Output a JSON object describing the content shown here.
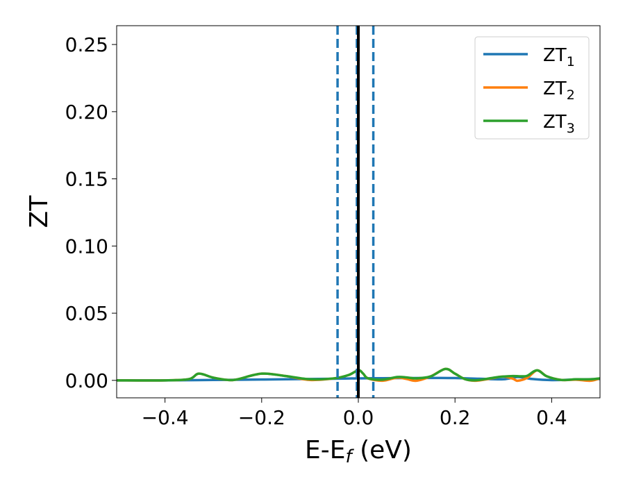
{
  "chart_data": {
    "type": "line",
    "title": "",
    "xlabel": "E-E",
    "xlabel_sub": "f",
    "xlabel_unit": " (eV)",
    "ylabel": "ZT",
    "xlim": [
      -0.5,
      0.5
    ],
    "ylim": [
      -0.013,
      0.264
    ],
    "xticks": [
      -0.4,
      -0.2,
      0.0,
      0.2,
      0.4
    ],
    "xtick_labels": [
      "−0.4",
      "−0.2",
      "0.0",
      "0.2",
      "0.4"
    ],
    "yticks": [
      0.0,
      0.05,
      0.1,
      0.15,
      0.2,
      0.25
    ],
    "ytick_labels": [
      "0.00",
      "0.05",
      "0.10",
      "0.15",
      "0.20",
      "0.25"
    ],
    "grid": false,
    "legend_position": "top-right",
    "vertical_lines": [
      {
        "x": -0.043,
        "style": "dashed",
        "color": "#1f77b4"
      },
      {
        "x": -0.003,
        "style": "dashed",
        "color": "#1f77b4"
      },
      {
        "x": 0.031,
        "style": "dashed",
        "color": "#1f77b4"
      },
      {
        "x": 0.0,
        "style": "solid",
        "color": "#000000"
      }
    ],
    "series": [
      {
        "name": "ZT",
        "name_sub": "1",
        "color": "#1f77b4",
        "x": [
          -0.5,
          -0.4,
          -0.3,
          -0.2,
          -0.1,
          -0.05,
          0.0,
          0.05,
          0.1,
          0.15,
          0.2,
          0.25,
          0.3,
          0.33,
          0.36,
          0.4,
          0.45,
          0.5
        ],
        "y": [
          0.0,
          0.0,
          0.0003,
          0.0006,
          0.001,
          0.0012,
          0.0015,
          0.0016,
          0.0017,
          0.0018,
          0.0017,
          0.0012,
          0.0008,
          0.0025,
          0.001,
          0.0002,
          0.0006,
          0.001
        ]
      },
      {
        "name": "ZT",
        "name_sub": "2",
        "color": "#ff7f0e",
        "x": [
          -0.5,
          -0.4,
          -0.35,
          -0.33,
          -0.3,
          -0.27,
          -0.25,
          -0.2,
          -0.15,
          -0.1,
          -0.05,
          -0.02,
          0.0,
          0.01,
          0.02,
          0.05,
          0.08,
          0.1,
          0.12,
          0.15,
          0.18,
          0.2,
          0.22,
          0.24,
          0.26,
          0.28,
          0.3,
          0.32,
          0.33,
          0.35,
          0.37,
          0.39,
          0.42,
          0.45,
          0.48,
          0.5
        ],
        "y": [
          0.0,
          0.0,
          0.001,
          0.005,
          0.002,
          0.0003,
          0.0008,
          0.005,
          0.0032,
          0.0003,
          0.0015,
          0.004,
          0.0075,
          0.005,
          0.0015,
          -0.0003,
          0.002,
          0.001,
          -0.0003,
          0.003,
          0.0085,
          0.005,
          0.001,
          -0.0003,
          0.0005,
          0.0018,
          0.0028,
          0.0012,
          -0.0003,
          0.002,
          0.0075,
          0.003,
          0.0003,
          0.0005,
          -0.0003,
          0.0015
        ]
      },
      {
        "name": "ZT",
        "name_sub": "3",
        "color": "#2ca02c",
        "x": [
          -0.5,
          -0.4,
          -0.35,
          -0.33,
          -0.3,
          -0.27,
          -0.25,
          -0.2,
          -0.15,
          -0.1,
          -0.05,
          -0.02,
          0.0,
          0.01,
          0.02,
          0.05,
          0.08,
          0.1,
          0.12,
          0.15,
          0.18,
          0.2,
          0.22,
          0.24,
          0.26,
          0.28,
          0.3,
          0.32,
          0.34,
          0.35,
          0.37,
          0.39,
          0.42,
          0.45,
          0.48,
          0.5
        ],
        "y": [
          0.0,
          0.0,
          0.001,
          0.005,
          0.002,
          0.0003,
          0.0008,
          0.005,
          0.0032,
          0.0008,
          0.0015,
          0.004,
          0.0075,
          0.005,
          0.0015,
          0.0005,
          0.0025,
          0.0022,
          0.0015,
          0.003,
          0.0085,
          0.005,
          0.001,
          0.0,
          0.0008,
          0.002,
          0.0028,
          0.0032,
          0.003,
          0.0035,
          0.0075,
          0.003,
          0.0003,
          0.0008,
          0.0008,
          0.0015
        ]
      }
    ]
  }
}
